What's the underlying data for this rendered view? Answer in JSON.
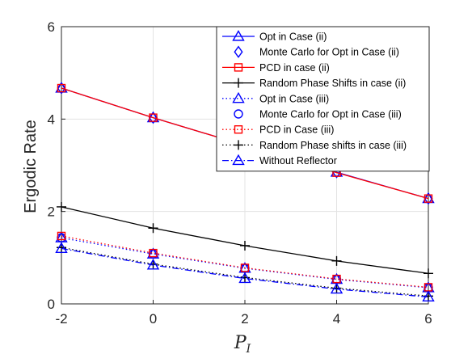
{
  "chart_data": {
    "type": "line",
    "x": [
      -2,
      0,
      2,
      4,
      6
    ],
    "xlabel": {
      "main": "P",
      "sub": "I"
    },
    "ylabel": "Ergodic Rate",
    "xlim": [
      -2,
      6
    ],
    "ylim": [
      0,
      6
    ],
    "xticks": [
      "-2",
      "0",
      "2",
      "4",
      "6"
    ],
    "yticks": [
      "0",
      "2",
      "4",
      "6"
    ],
    "grid": true,
    "legend_position": "top-right",
    "series": [
      {
        "name": "Opt in Case (ii)",
        "values": [
          4.67,
          4.03,
          3.43,
          2.85,
          2.28
        ],
        "color": "#0000ff",
        "line": "solid",
        "marker": "triangle"
      },
      {
        "name": "Monte Carlo for Opt in Case (ii)",
        "values": [
          4.67,
          4.03,
          3.43,
          2.85,
          2.28
        ],
        "color": "#0000ff",
        "line": "none",
        "marker": "diamond"
      },
      {
        "name": "PCD in case (ii)",
        "values": [
          4.67,
          4.03,
          3.43,
          2.84,
          2.28
        ],
        "color": "#ff0000",
        "line": "solid",
        "marker": "square"
      },
      {
        "name": "Random Phase Shifts in case (ii)",
        "values": [
          2.1,
          1.64,
          1.26,
          0.93,
          0.66
        ],
        "color": "#000000",
        "line": "solid",
        "marker": "plus"
      },
      {
        "name": "Opt in Case (iii)",
        "values": [
          1.43,
          1.08,
          0.77,
          0.53,
          0.35
        ],
        "color": "#0000ff",
        "line": "dotted",
        "marker": "triangle"
      },
      {
        "name": "Monte Carlo for Opt in Case (iii)",
        "values": [
          1.43,
          1.08,
          0.77,
          0.53,
          0.35
        ],
        "color": "#0000ff",
        "line": "none",
        "marker": "circle"
      },
      {
        "name": "PCD in Case (iii)",
        "values": [
          1.47,
          1.1,
          0.78,
          0.54,
          0.36
        ],
        "color": "#ff0000",
        "line": "dotted",
        "marker": "square"
      },
      {
        "name": "Random Phase shifts in case (iii)",
        "values": [
          1.22,
          0.86,
          0.57,
          0.34,
          0.17
        ],
        "color": "#000000",
        "line": "dotted",
        "marker": "plus"
      },
      {
        "name": "Without Reflector",
        "values": [
          1.2,
          0.84,
          0.55,
          0.32,
          0.15
        ],
        "color": "#0000ff",
        "line": "dashdot",
        "marker": "triangle"
      }
    ]
  }
}
